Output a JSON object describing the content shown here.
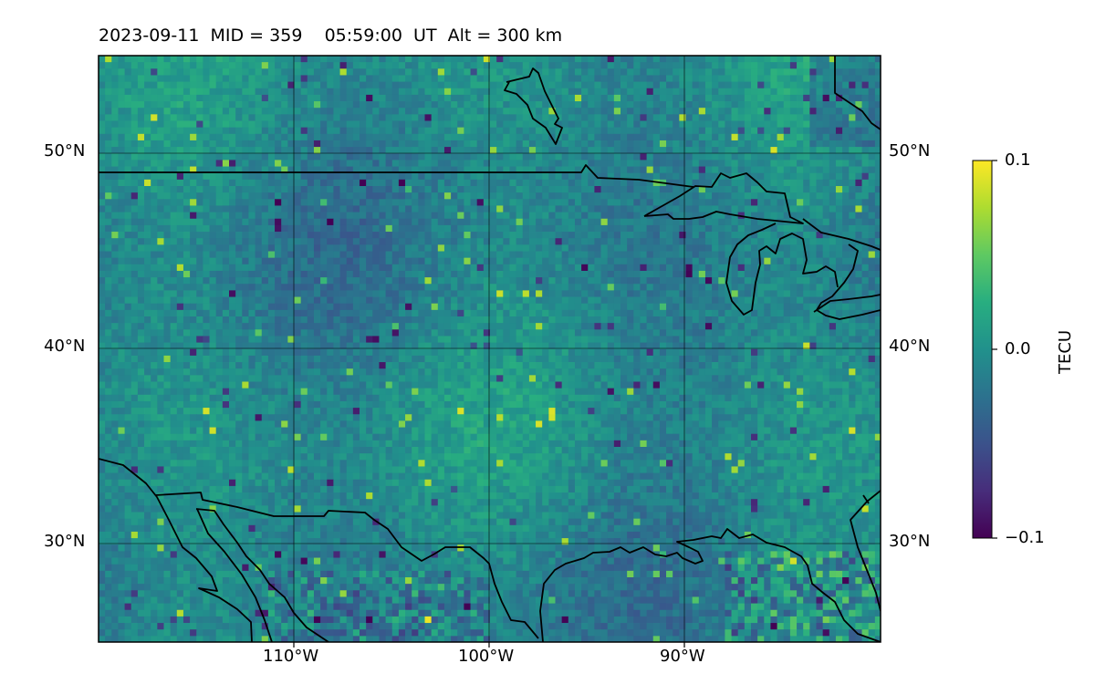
{
  "title": {
    "date": "2023-09-11",
    "mid": "MID = 359",
    "time": "05:59:00",
    "ut": "UT",
    "alt": "Alt = 300 km"
  },
  "map": {
    "lon_range": [
      -120,
      -80
    ],
    "lat_range": [
      25,
      55
    ],
    "latitude_labels_left": [
      "50°N",
      "40°N",
      "30°N"
    ],
    "latitude_labels_right": [
      "50°N",
      "40°N",
      "30°N"
    ],
    "longitude_labels": [
      "110°W",
      "100°W",
      "90°W"
    ],
    "gridlines": true,
    "colormap": "viridis",
    "colorbar": {
      "label": "TECU",
      "range": [
        -0.1,
        0.1
      ],
      "tick_labels": [
        "0.1",
        "0.0",
        "−0.1"
      ],
      "placement": "right"
    }
  },
  "colors": {
    "viridis_low": "#440154",
    "viridis_mid": "#21918c",
    "viridis_high": "#fde725",
    "coastline": "#000000"
  }
}
